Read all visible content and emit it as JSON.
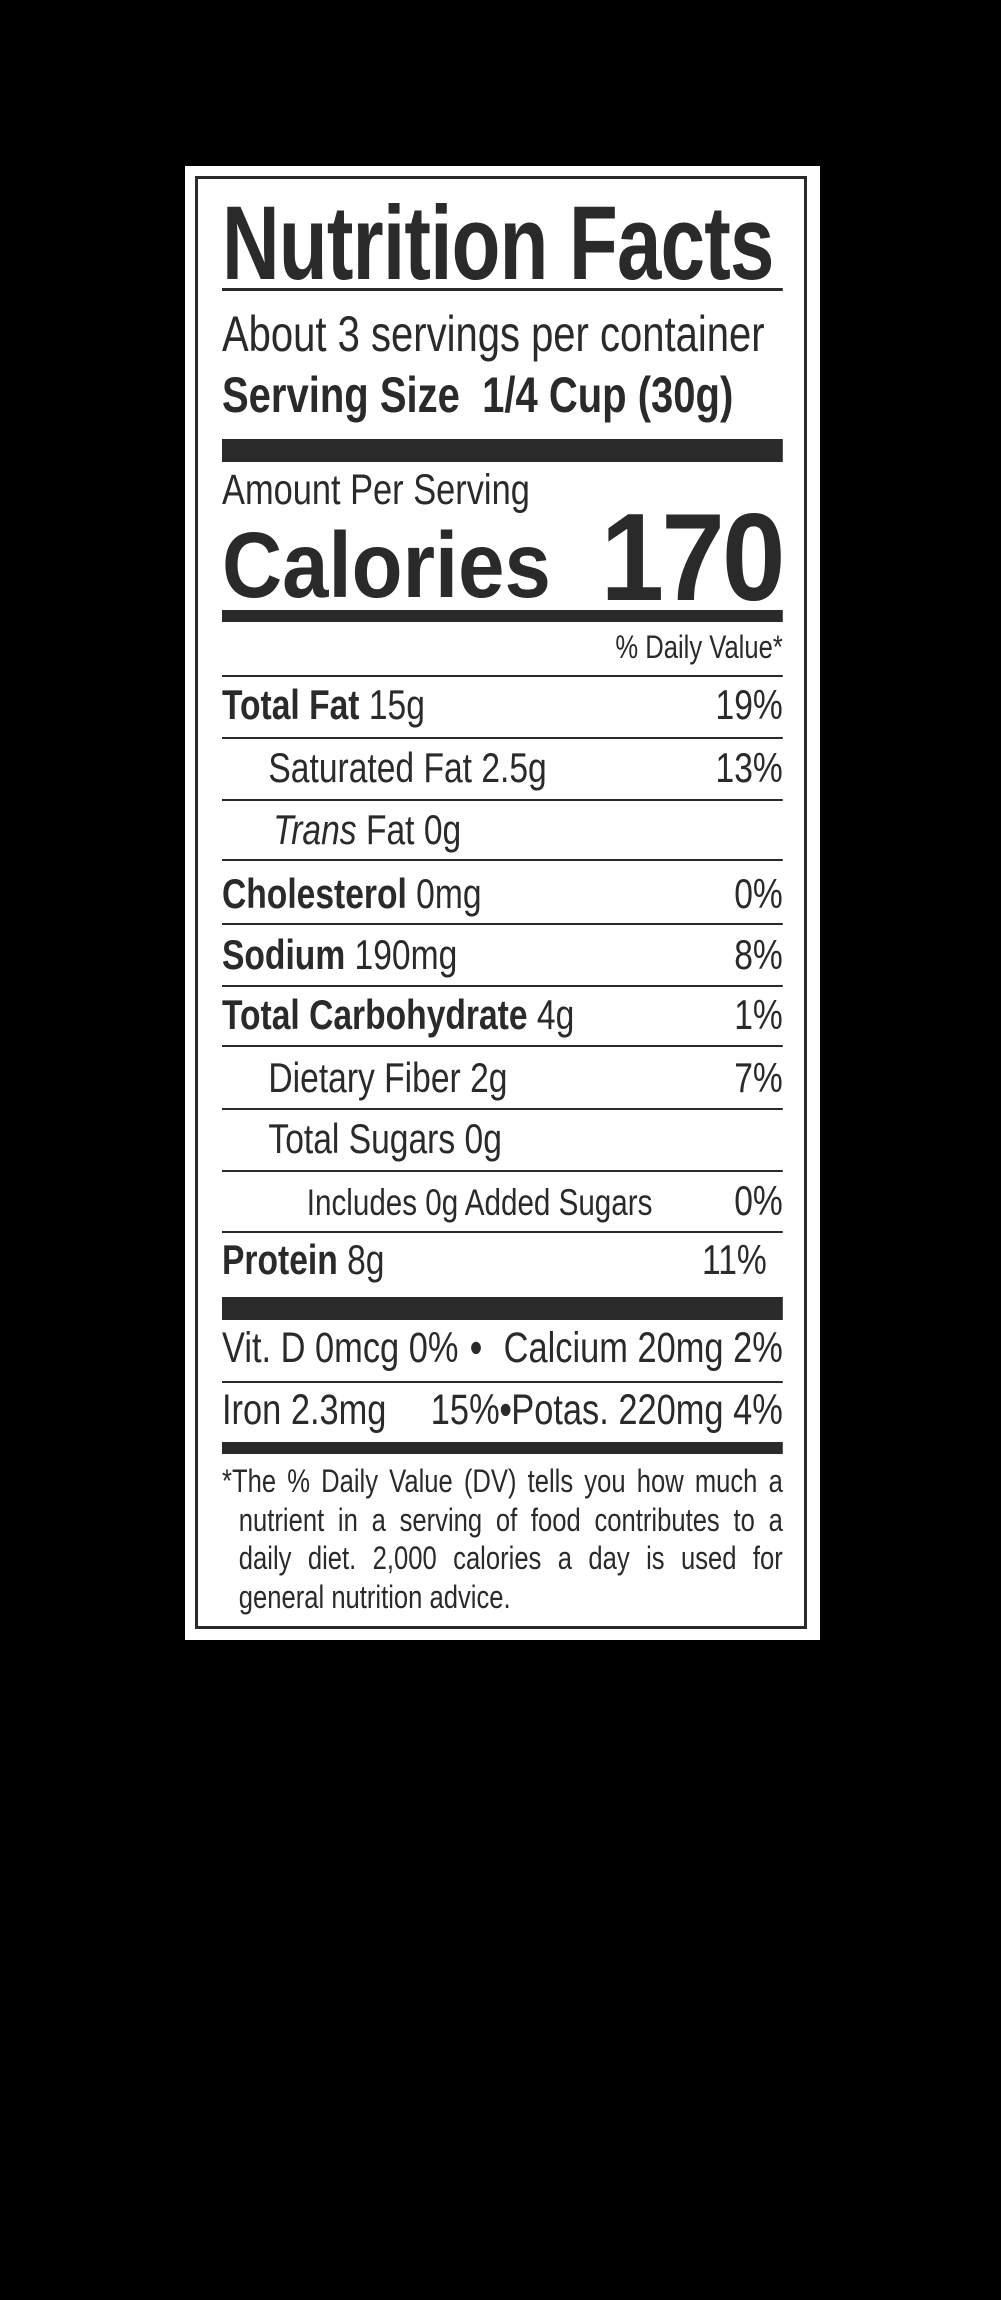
{
  "title": "Nutrition Facts",
  "servings_per_container": "About 3 servings per container",
  "serving_size_label": "Serving Size",
  "serving_size_value": "1/4 Cup (30g)",
  "amount_per_serving": "Amount Per Serving",
  "calories_label": "Calories",
  "calories_value": "170",
  "daily_value_header": "% Daily Value*",
  "nutrients": [
    {
      "name": "Total Fat",
      "amount": "15g",
      "dv": "19%"
    },
    {
      "name": "Saturated Fat",
      "amount": "2.5g",
      "dv": "13%"
    },
    {
      "name": "Trans",
      "amount": "Fat 0g",
      "dv": ""
    },
    {
      "name": "Cholesterol",
      "amount": "0mg",
      "dv": "0%"
    },
    {
      "name": "Sodium",
      "amount": "190mg",
      "dv": "8%"
    },
    {
      "name": "Total Carbohydrate",
      "amount": "4g",
      "dv": "1%"
    },
    {
      "name": "Dietary Fiber",
      "amount": "2g",
      "dv": "7%"
    },
    {
      "name": "Total Sugars",
      "amount": "0g",
      "dv": ""
    },
    {
      "name": "Includes 0g Added Sugars",
      "amount": "",
      "dv": "0%"
    },
    {
      "name": "Protein",
      "amount": "8g",
      "dv": "11%"
    }
  ],
  "vitamins": {
    "vit_d": "Vit. D 0mcg 0%",
    "calcium": "Calcium 20mg 2%",
    "iron": "Iron 2.3mg",
    "iron_dv": "15%",
    "potassium": "Potas. 220mg 4%",
    "bullet": "•"
  },
  "footnote": "*The % Daily Value (DV) tells you how much a nutrient in a serving of food contributes to a daily diet. 2,000 calories a day is used for general nutrition advice.",
  "colors": {
    "ink": "#2a2a2a",
    "background": "#000000",
    "label": "#ffffff"
  }
}
